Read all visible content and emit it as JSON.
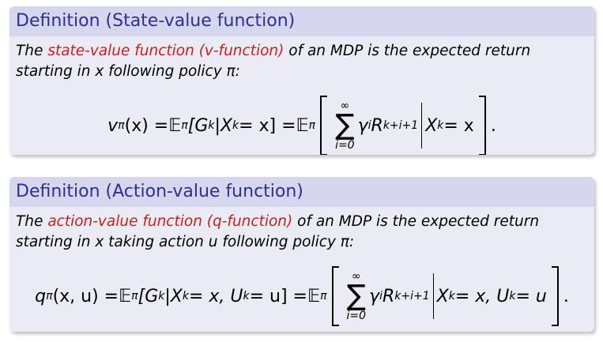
{
  "blocks": [
    {
      "title": "Definition (State-value function)",
      "intro": "The",
      "term": "state-value function (v-function)",
      "text": "of an MDP is the expected return starting in x following policy π:",
      "equation": [
        "v",
        "π",
        "(x) = ",
        "𝔼",
        "π",
        "[G",
        "k",
        "|X",
        "k",
        " = x] = ",
        "𝔼",
        "π",
        "∞",
        "∑",
        "i=0",
        "γ",
        "i",
        "R",
        "k+i+1",
        "X",
        "k",
        " = x",
        "."
      ]
    },
    {
      "title": "Definition (Action-value function)",
      "intro": "The",
      "term": "action-value function (q-function)",
      "text": "of an MDP is the expected return starting in x taking action u following policy π:",
      "equation": [
        "q",
        "π",
        "(x, u) = ",
        "𝔼",
        "π",
        "[G",
        "k",
        "|X",
        "k",
        " = x, U",
        "k",
        " = u] = ",
        "𝔼",
        "π",
        "∞",
        "∑",
        "i=0",
        "γ",
        "i",
        "R",
        "k+i+1",
        "X",
        "k",
        " = x, U",
        "k",
        " = u",
        "."
      ]
    }
  ]
}
